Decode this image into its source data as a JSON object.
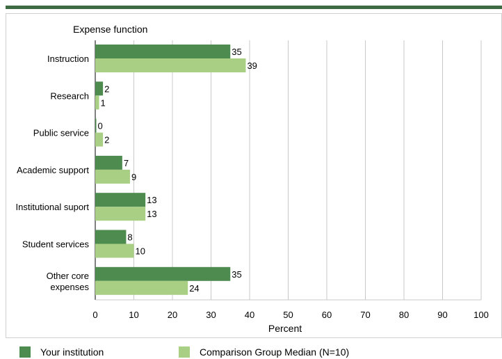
{
  "chart_data": {
    "type": "bar",
    "orientation": "horizontal",
    "title": "Expense function",
    "xlabel": "Percent",
    "xlim": [
      0,
      100
    ],
    "xticks": [
      0,
      10,
      20,
      30,
      40,
      50,
      60,
      70,
      80,
      90,
      100
    ],
    "grid": true,
    "categories": [
      [
        "Instruction"
      ],
      [
        "Research"
      ],
      [
        "Public service"
      ],
      [
        "Academic support"
      ],
      [
        "Institutional suport"
      ],
      [
        "Student services"
      ],
      [
        "Other core",
        "expenses"
      ]
    ],
    "series": [
      {
        "name": "Your institution",
        "color": "#4e8b4f",
        "values": [
          35,
          2,
          0,
          7,
          13,
          8,
          35
        ]
      },
      {
        "name": "Comparison Group Median (N=10)",
        "color": "#a9cf85",
        "values": [
          39,
          1,
          2,
          9,
          13,
          10,
          24
        ]
      }
    ],
    "legend_position": "bottom"
  }
}
